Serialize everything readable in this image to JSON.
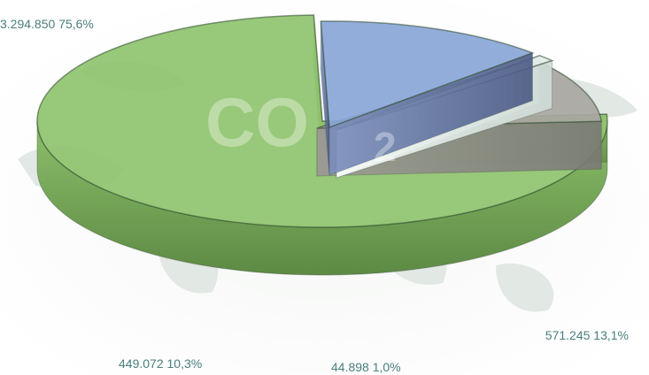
{
  "chart_data": {
    "type": "pie",
    "style": "3d-exploded",
    "watermark_text": "CO",
    "watermark_subscript": "2",
    "slices": [
      {
        "value": 3294850,
        "percent": 75.6,
        "label": "3.294.850 75,6%",
        "color": "#8fc36e"
      },
      {
        "value": 571245,
        "percent": 13.1,
        "label": "571.245 13,1%",
        "color": "#8aa6d8"
      },
      {
        "value": 44898,
        "percent": 1.0,
        "label": "44.898 1,0%",
        "color": "#e4ece9"
      },
      {
        "value": 449072,
        "percent": 10.3,
        "label": "449.072 10,3%",
        "color": "#a8a6a1"
      }
    ]
  }
}
